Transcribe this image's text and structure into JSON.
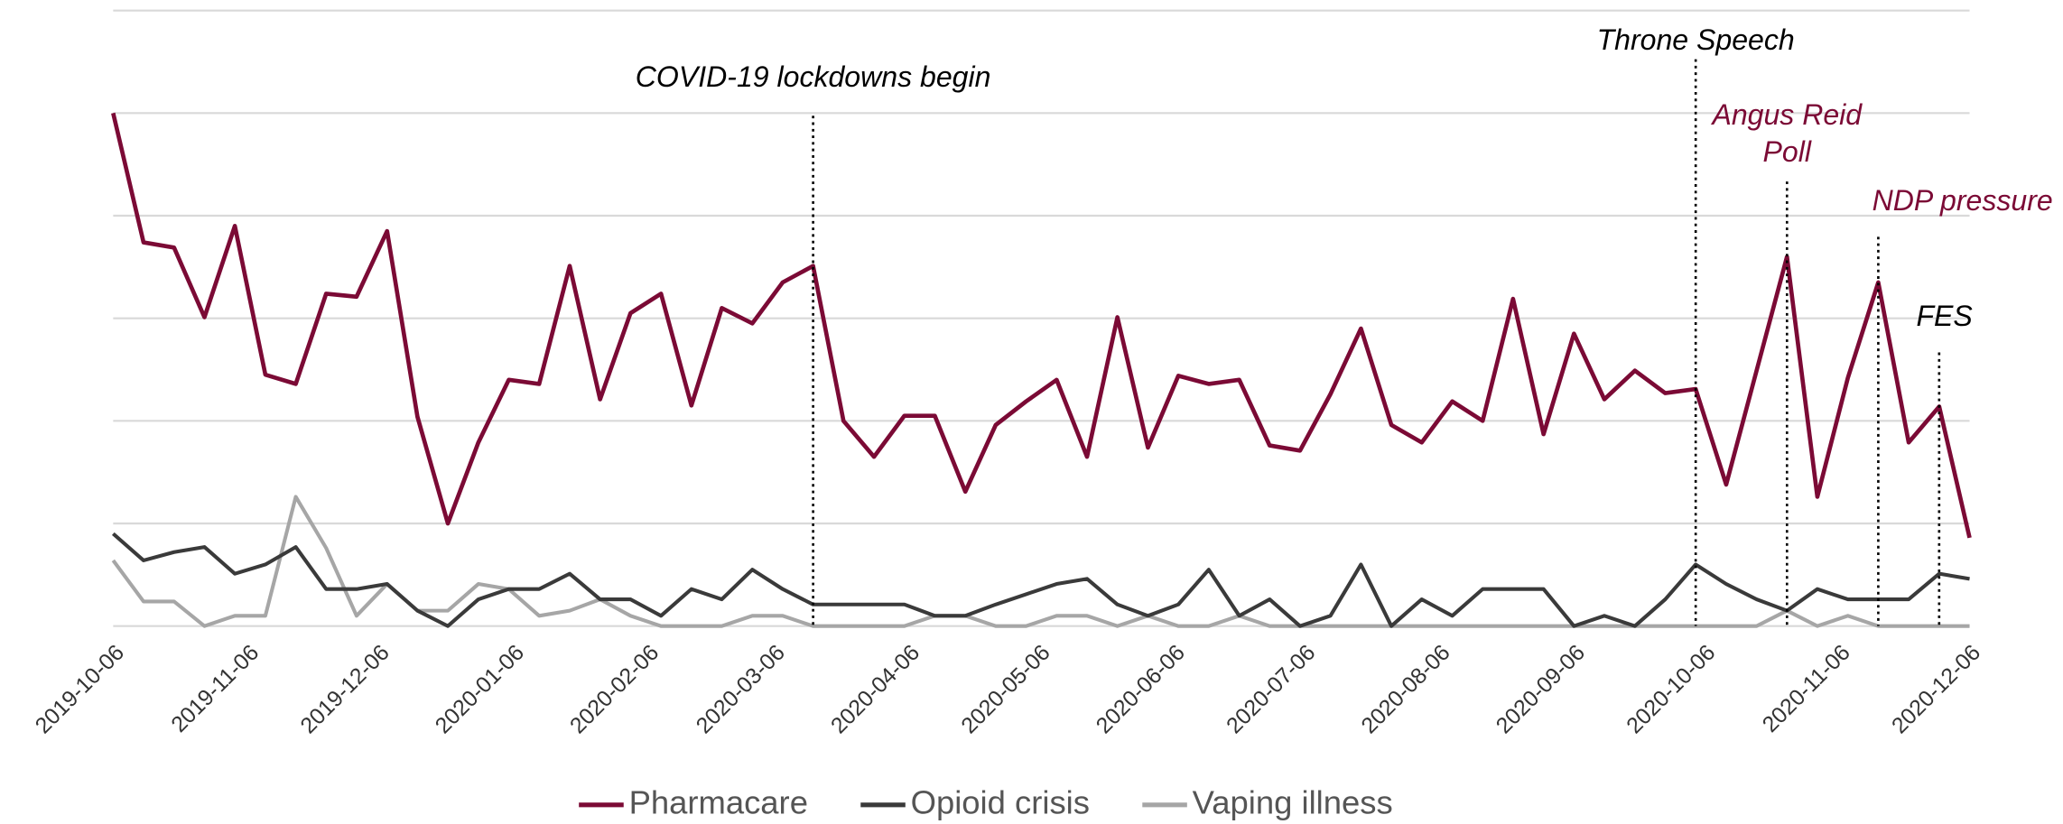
{
  "chart_data": {
    "type": "line",
    "x": [
      "2019-10-06",
      "2019-10-13",
      "2019-10-20",
      "2019-10-27",
      "2019-11-03",
      "2019-11-10",
      "2019-11-17",
      "2019-11-24",
      "2019-12-01",
      "2019-12-08",
      "2019-12-15",
      "2019-12-22",
      "2019-12-29",
      "2020-01-05",
      "2020-01-12",
      "2020-01-19",
      "2020-01-26",
      "2020-02-02",
      "2020-02-09",
      "2020-02-16",
      "2020-02-23",
      "2020-03-01",
      "2020-03-08",
      "2020-03-15",
      "2020-03-22",
      "2020-03-29",
      "2020-04-05",
      "2020-04-12",
      "2020-04-19",
      "2020-04-26",
      "2020-05-03",
      "2020-05-10",
      "2020-05-17",
      "2020-05-24",
      "2020-05-31",
      "2020-06-07",
      "2020-06-14",
      "2020-06-21",
      "2020-06-28",
      "2020-07-05",
      "2020-07-12",
      "2020-07-19",
      "2020-07-26",
      "2020-08-02",
      "2020-08-09",
      "2020-08-16",
      "2020-08-23",
      "2020-08-30",
      "2020-09-06",
      "2020-09-13",
      "2020-09-20",
      "2020-09-27",
      "2020-10-04",
      "2020-10-11",
      "2020-10-18",
      "2020-10-25",
      "2020-11-01",
      "2020-11-08",
      "2020-11-15",
      "2020-11-22",
      "2020-11-29",
      "2020-12-06"
    ],
    "series": [
      {
        "name": "Pharmacare",
        "color": "#7b0a35",
        "values": [
          5.0,
          3.74,
          3.69,
          3.01,
          3.9,
          2.45,
          2.36,
          3.24,
          3.21,
          3.85,
          2.04,
          1.0,
          1.79,
          2.4,
          2.36,
          3.51,
          2.21,
          3.05,
          3.24,
          2.15,
          3.1,
          2.95,
          3.35,
          3.51,
          2.0,
          1.65,
          2.05,
          2.05,
          1.31,
          1.96,
          2.19,
          2.4,
          1.65,
          3.01,
          1.74,
          2.44,
          2.36,
          2.4,
          1.76,
          1.71,
          2.26,
          2.9,
          1.96,
          1.79,
          2.19,
          2.0,
          3.19,
          1.87,
          2.85,
          2.21,
          2.49,
          2.27,
          2.31,
          1.38,
          2.49,
          3.6,
          1.26,
          2.42,
          3.35,
          1.79,
          2.14,
          0.86
        ]
      },
      {
        "name": "Opioid crisis",
        "color": "#3a3a3a",
        "values": [
          0.9,
          0.64,
          0.72,
          0.77,
          0.51,
          0.6,
          0.77,
          0.36,
          0.36,
          0.41,
          0.15,
          0,
          0.26,
          0.36,
          0.36,
          0.51,
          0.26,
          0.26,
          0.1,
          0.36,
          0.26,
          0.55,
          0.36,
          0.21,
          0.21,
          0.21,
          0.21,
          0.1,
          0.1,
          0.21,
          0.31,
          0.41,
          0.46,
          0.21,
          0.1,
          0.21,
          0.55,
          0.1,
          0.26,
          0,
          0.1,
          0.6,
          0,
          0.26,
          0.1,
          0.36,
          0.36,
          0.36,
          0,
          0.1,
          0,
          0.26,
          0.6,
          0.41,
          0.26,
          0.15,
          0.36,
          0.26,
          0.26,
          0.26,
          0.51,
          0.46
        ]
      },
      {
        "name": "Vaping illness",
        "color": "#a6a6a6",
        "values": [
          0.64,
          0.24,
          0.24,
          0,
          0.1,
          0.1,
          1.26,
          0.76,
          0.1,
          0.41,
          0.15,
          0.15,
          0.41,
          0.36,
          0.1,
          0.15,
          0.26,
          0.1,
          0,
          0,
          0,
          0.1,
          0.1,
          0,
          0,
          0,
          0,
          0.1,
          0.1,
          0,
          0,
          0.1,
          0.1,
          0,
          0.1,
          0,
          0,
          0.1,
          0,
          0,
          0,
          0,
          0,
          0,
          0,
          0,
          0,
          0,
          0,
          0,
          0,
          0,
          0,
          0,
          0,
          0.15,
          0,
          0.1,
          0,
          0,
          0,
          0
        ]
      }
    ],
    "xticks": [
      "2019-10-06",
      "2019-11-06",
      "2019-12-06",
      "2020-01-06",
      "2020-02-06",
      "2020-03-06",
      "2020-04-06",
      "2020-05-06",
      "2020-06-06",
      "2020-07-06",
      "2020-08-06",
      "2020-09-06",
      "2020-10-06",
      "2020-11-06",
      "2020-12-06"
    ],
    "xlim": [
      "2019-10-06",
      "2020-12-06"
    ],
    "ylim": [
      0,
      6
    ],
    "yticks": [
      0,
      1,
      2,
      3,
      4,
      5,
      6
    ],
    "ytick_labels": false,
    "grid": true,
    "legend": "bottom",
    "annotations": [
      {
        "x": "2020-03-15",
        "text": [
          "COVID-19 lockdowns begin"
        ],
        "color": "#000000"
      },
      {
        "x": "2020-10-04",
        "text": [
          "Throne Speech"
        ],
        "color": "#000000"
      },
      {
        "x": "2020-10-25",
        "text": [
          "Angus Reid",
          "Poll"
        ],
        "color": "#7b0a35"
      },
      {
        "x": "2020-11-15",
        "text": [
          "NDP pressure"
        ],
        "color": "#7b0a35"
      },
      {
        "x": "2020-11-29",
        "text": [
          "FES"
        ],
        "color": "#000000"
      }
    ]
  }
}
